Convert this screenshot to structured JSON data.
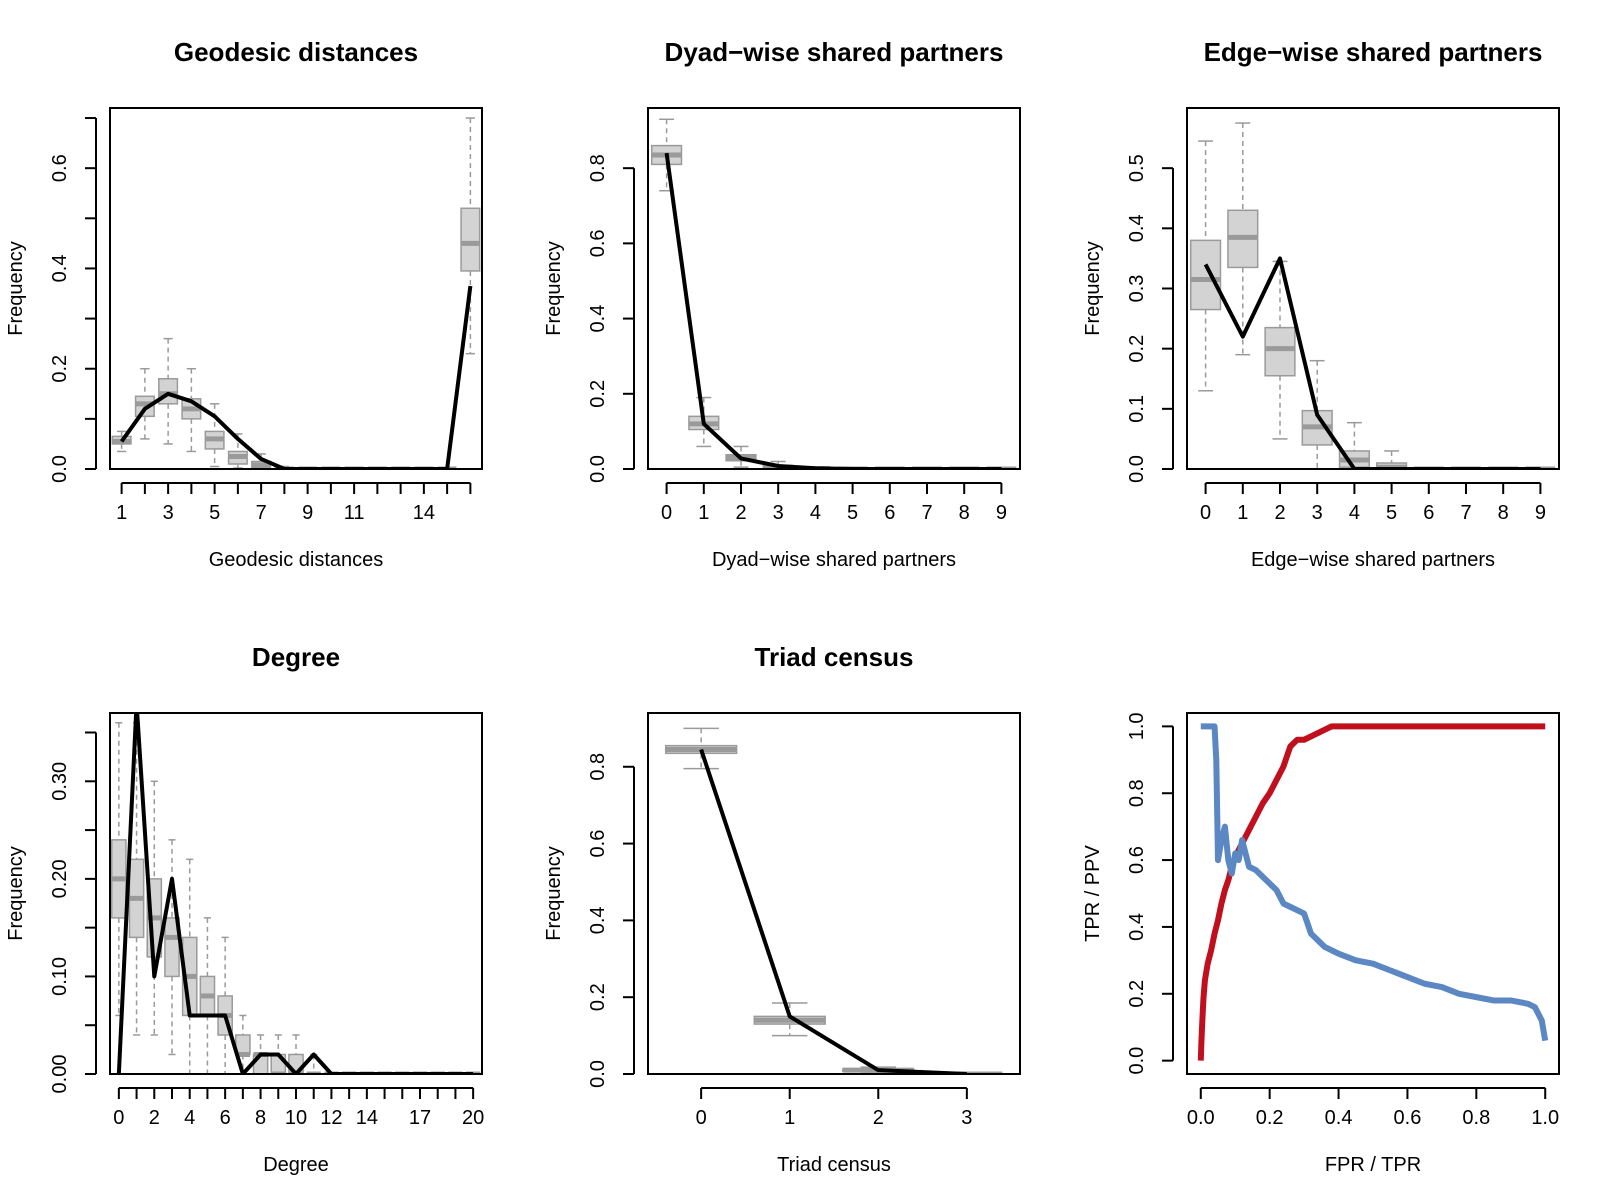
{
  "chart_data": [
    {
      "type": "boxplot",
      "title": "Geodesic distances",
      "xlabel": "Geodesic distances",
      "ylabel": "Frequency",
      "xlim": [
        0.5,
        16.5
      ],
      "ylim": [
        0,
        0.72
      ],
      "xticks": [
        1,
        2,
        3,
        4,
        5,
        6,
        7,
        8,
        9,
        10,
        11,
        12,
        13,
        14,
        15,
        16
      ],
      "xtick_labels": [
        "1",
        "",
        "3",
        "",
        "5",
        "",
        "7",
        "",
        "9",
        "",
        "11",
        "",
        "",
        "14",
        "",
        ""
      ],
      "yticks": [
        0,
        0.1,
        0.2,
        0.3,
        0.4,
        0.5,
        0.6,
        0.7
      ],
      "ytick_labels": [
        "0.0",
        "",
        "0.2",
        "",
        "0.4",
        "",
        "0.6",
        ""
      ],
      "boxes": [
        {
          "x": 1,
          "min": 0.035,
          "q1": 0.05,
          "median": 0.055,
          "q3": 0.065,
          "max": 0.075
        },
        {
          "x": 2,
          "min": 0.06,
          "q1": 0.105,
          "median": 0.13,
          "q3": 0.145,
          "max": 0.2
        },
        {
          "x": 3,
          "min": 0.05,
          "q1": 0.13,
          "median": 0.15,
          "q3": 0.18,
          "max": 0.26
        },
        {
          "x": 4,
          "min": 0.035,
          "q1": 0.1,
          "median": 0.12,
          "q3": 0.14,
          "max": 0.2
        },
        {
          "x": 5,
          "min": 0.005,
          "q1": 0.04,
          "median": 0.06,
          "q3": 0.075,
          "max": 0.13
        },
        {
          "x": 6,
          "min": 0.002,
          "q1": 0.01,
          "median": 0.025,
          "q3": 0.035,
          "max": 0.07
        },
        {
          "x": 7,
          "min": 0.0,
          "q1": 0.002,
          "median": 0.008,
          "q3": 0.015,
          "max": 0.03
        },
        {
          "x": 8,
          "min": 0.0,
          "q1": 0.0,
          "median": 0.0,
          "q3": 0.002,
          "max": 0.005
        },
        {
          "x": 9,
          "min": 0,
          "q1": 0,
          "median": 0,
          "q3": 0,
          "max": 0
        },
        {
          "x": 10,
          "min": 0,
          "q1": 0,
          "median": 0,
          "q3": 0,
          "max": 0
        },
        {
          "x": 11,
          "min": 0,
          "q1": 0,
          "median": 0,
          "q3": 0,
          "max": 0
        },
        {
          "x": 12,
          "min": 0,
          "q1": 0,
          "median": 0,
          "q3": 0,
          "max": 0
        },
        {
          "x": 13,
          "min": 0,
          "q1": 0,
          "median": 0,
          "q3": 0,
          "max": 0
        },
        {
          "x": 14,
          "min": 0,
          "q1": 0,
          "median": 0,
          "q3": 0,
          "max": 0
        },
        {
          "x": 15,
          "min": 0,
          "q1": 0,
          "median": 0,
          "q3": 0,
          "max": 0
        },
        {
          "x": 16,
          "min": 0.23,
          "q1": 0.395,
          "median": 0.45,
          "q3": 0.52,
          "max": 0.7
        }
      ],
      "line": {
        "x": [
          1,
          2,
          3,
          4,
          5,
          6,
          7,
          8,
          9,
          10,
          11,
          12,
          13,
          14,
          15,
          16
        ],
        "y": [
          0.055,
          0.12,
          0.15,
          0.135,
          0.105,
          0.06,
          0.02,
          0.0,
          0.0,
          0.0,
          0.0,
          0.0,
          0.0,
          0.0,
          0.0,
          0.365
        ]
      }
    },
    {
      "type": "boxplot",
      "title": "Dyad−wise shared partners",
      "xlabel": "Dyad−wise shared partners",
      "ylabel": "Frequency",
      "xlim": [
        -0.5,
        9.5
      ],
      "ylim": [
        0,
        0.96
      ],
      "xticks": [
        0,
        1,
        2,
        3,
        4,
        5,
        6,
        7,
        8,
        9
      ],
      "xtick_labels": [
        "0",
        "1",
        "2",
        "3",
        "4",
        "5",
        "6",
        "7",
        "8",
        "9"
      ],
      "yticks": [
        0,
        0.2,
        0.4,
        0.6,
        0.8
      ],
      "ytick_labels": [
        "0.0",
        "0.2",
        "0.4",
        "0.6",
        "0.8"
      ],
      "boxes": [
        {
          "x": 0,
          "min": 0.74,
          "q1": 0.81,
          "median": 0.835,
          "q3": 0.86,
          "max": 0.93
        },
        {
          "x": 1,
          "min": 0.06,
          "q1": 0.105,
          "median": 0.12,
          "q3": 0.14,
          "max": 0.19
        },
        {
          "x": 2,
          "min": 0.005,
          "q1": 0.022,
          "median": 0.03,
          "q3": 0.038,
          "max": 0.06
        },
        {
          "x": 3,
          "min": 0.0,
          "q1": 0.002,
          "median": 0.005,
          "q3": 0.008,
          "max": 0.02
        },
        {
          "x": 4,
          "min": 0,
          "q1": 0,
          "median": 0.001,
          "q3": 0.002,
          "max": 0.005
        },
        {
          "x": 5,
          "min": 0,
          "q1": 0,
          "median": 0,
          "q3": 0,
          "max": 0
        },
        {
          "x": 6,
          "min": 0,
          "q1": 0,
          "median": 0,
          "q3": 0,
          "max": 0
        },
        {
          "x": 7,
          "min": 0,
          "q1": 0,
          "median": 0,
          "q3": 0,
          "max": 0
        },
        {
          "x": 8,
          "min": 0,
          "q1": 0,
          "median": 0,
          "q3": 0,
          "max": 0
        },
        {
          "x": 9,
          "min": 0,
          "q1": 0,
          "median": 0,
          "q3": 0,
          "max": 0
        }
      ],
      "line": {
        "x": [
          0,
          1,
          2,
          3,
          4,
          5,
          6,
          7,
          8,
          9
        ],
        "y": [
          0.84,
          0.12,
          0.028,
          0.008,
          0.002,
          0.0,
          0.0,
          0.0,
          0.0,
          0.0
        ]
      }
    },
    {
      "type": "boxplot",
      "title": "Edge−wise shared partners",
      "xlabel": "Edge−wise shared partners",
      "ylabel": "Frequency",
      "xlim": [
        -0.5,
        9.5
      ],
      "ylim": [
        0,
        0.6
      ],
      "xticks": [
        0,
        1,
        2,
        3,
        4,
        5,
        6,
        7,
        8,
        9
      ],
      "xtick_labels": [
        "0",
        "1",
        "2",
        "3",
        "4",
        "5",
        "6",
        "7",
        "8",
        "9"
      ],
      "yticks": [
        0,
        0.1,
        0.2,
        0.3,
        0.4,
        0.5
      ],
      "ytick_labels": [
        "0.0",
        "0.1",
        "0.2",
        "0.3",
        "0.4",
        "0.5"
      ],
      "boxes": [
        {
          "x": 0,
          "min": 0.13,
          "q1": 0.265,
          "median": 0.315,
          "q3": 0.38,
          "max": 0.545
        },
        {
          "x": 1,
          "min": 0.19,
          "q1": 0.335,
          "median": 0.385,
          "q3": 0.43,
          "max": 0.575
        },
        {
          "x": 2,
          "min": 0.05,
          "q1": 0.155,
          "median": 0.2,
          "q3": 0.235,
          "max": 0.345
        },
        {
          "x": 3,
          "min": 0.0,
          "q1": 0.04,
          "median": 0.07,
          "q3": 0.097,
          "max": 0.18
        },
        {
          "x": 4,
          "min": 0.0,
          "q1": 0.003,
          "median": 0.015,
          "q3": 0.03,
          "max": 0.077
        },
        {
          "x": 5,
          "min": 0.0,
          "q1": 0.0,
          "median": 0.003,
          "q3": 0.01,
          "max": 0.03
        },
        {
          "x": 6,
          "min": 0,
          "q1": 0,
          "median": 0,
          "q3": 0,
          "max": 0
        },
        {
          "x": 7,
          "min": 0,
          "q1": 0,
          "median": 0,
          "q3": 0,
          "max": 0
        },
        {
          "x": 8,
          "min": 0,
          "q1": 0,
          "median": 0,
          "q3": 0,
          "max": 0
        },
        {
          "x": 9,
          "min": 0,
          "q1": 0,
          "median": 0,
          "q3": 0,
          "max": 0
        }
      ],
      "line": {
        "x": [
          0,
          1,
          2,
          3,
          4,
          5,
          6,
          7,
          8,
          9
        ],
        "y": [
          0.34,
          0.22,
          0.35,
          0.09,
          0.0,
          0.0,
          0.0,
          0.0,
          0.0,
          0.0
        ]
      }
    },
    {
      "type": "boxplot",
      "title": "Degree",
      "xlabel": "Degree",
      "ylabel": "Frequency",
      "xlim": [
        -0.5,
        20.5
      ],
      "ylim": [
        0,
        0.37
      ],
      "xticks": [
        0,
        1,
        2,
        3,
        4,
        5,
        6,
        7,
        8,
        9,
        10,
        11,
        12,
        13,
        14,
        15,
        16,
        17,
        18,
        19,
        20
      ],
      "xtick_labels": [
        "0",
        "",
        "2",
        "",
        "4",
        "",
        "6",
        "",
        "8",
        "",
        "10",
        "",
        "12",
        "",
        "14",
        "",
        "",
        "17",
        "",
        "",
        "20"
      ],
      "yticks": [
        0,
        0.05,
        0.1,
        0.15,
        0.2,
        0.25,
        0.3,
        0.35
      ],
      "ytick_labels": [
        "0.00",
        "",
        "0.10",
        "",
        "0.20",
        "",
        "0.30",
        ""
      ],
      "boxes": [
        {
          "x": 0,
          "min": 0.06,
          "q1": 0.16,
          "median": 0.2,
          "q3": 0.24,
          "max": 0.36
        },
        {
          "x": 1,
          "min": 0.04,
          "q1": 0.14,
          "median": 0.18,
          "q3": 0.22,
          "max": 0.36
        },
        {
          "x": 2,
          "min": 0.04,
          "q1": 0.12,
          "median": 0.16,
          "q3": 0.2,
          "max": 0.3
        },
        {
          "x": 3,
          "min": 0.02,
          "q1": 0.1,
          "median": 0.14,
          "q3": 0.16,
          "max": 0.24
        },
        {
          "x": 4,
          "min": 0.0,
          "q1": 0.06,
          "median": 0.1,
          "q3": 0.14,
          "max": 0.22
        },
        {
          "x": 5,
          "min": 0.0,
          "q1": 0.06,
          "median": 0.08,
          "q3": 0.1,
          "max": 0.16
        },
        {
          "x": 6,
          "min": 0.0,
          "q1": 0.04,
          "median": 0.06,
          "q3": 0.08,
          "max": 0.14
        },
        {
          "x": 7,
          "min": 0.0,
          "q1": 0.02,
          "median": 0.02,
          "q3": 0.04,
          "max": 0.06
        },
        {
          "x": 8,
          "min": 0.0,
          "q1": 0.0,
          "median": 0.02,
          "q3": 0.02,
          "max": 0.04
        },
        {
          "x": 9,
          "min": 0.0,
          "q1": 0.0,
          "median": 0.0,
          "q3": 0.02,
          "max": 0.04
        },
        {
          "x": 10,
          "min": 0.0,
          "q1": 0.0,
          "median": 0.0,
          "q3": 0.02,
          "max": 0.04
        },
        {
          "x": 11,
          "min": 0.0,
          "q1": 0.0,
          "median": 0.0,
          "q3": 0.0,
          "max": 0.02
        },
        {
          "x": 12,
          "min": 0,
          "q1": 0,
          "median": 0,
          "q3": 0,
          "max": 0
        },
        {
          "x": 13,
          "min": 0,
          "q1": 0,
          "median": 0,
          "q3": 0,
          "max": 0
        },
        {
          "x": 14,
          "min": 0,
          "q1": 0,
          "median": 0,
          "q3": 0,
          "max": 0
        },
        {
          "x": 15,
          "min": 0,
          "q1": 0,
          "median": 0,
          "q3": 0,
          "max": 0
        },
        {
          "x": 16,
          "min": 0,
          "q1": 0,
          "median": 0,
          "q3": 0,
          "max": 0
        },
        {
          "x": 17,
          "min": 0,
          "q1": 0,
          "median": 0,
          "q3": 0,
          "max": 0
        },
        {
          "x": 18,
          "min": 0,
          "q1": 0,
          "median": 0,
          "q3": 0,
          "max": 0
        },
        {
          "x": 19,
          "min": 0,
          "q1": 0,
          "median": 0,
          "q3": 0,
          "max": 0
        },
        {
          "x": 20,
          "min": 0,
          "q1": 0,
          "median": 0,
          "q3": 0,
          "max": 0
        }
      ],
      "line": {
        "x": [
          0,
          1,
          2,
          3,
          4,
          5,
          6,
          7,
          8,
          9,
          10,
          11,
          12,
          13,
          14,
          15,
          16,
          17,
          18,
          19,
          20
        ],
        "y": [
          0.0,
          0.38,
          0.1,
          0.2,
          0.06,
          0.06,
          0.06,
          0.0,
          0.02,
          0.02,
          0.0,
          0.02,
          0.0,
          0.0,
          0.0,
          0.0,
          0.0,
          0.0,
          0.0,
          0.0,
          0.0
        ]
      }
    },
    {
      "type": "boxplot",
      "title": "Triad census",
      "xlabel": "Triad census",
      "ylabel": "Frequency",
      "xlim": [
        -0.6,
        3.6
      ],
      "ylim": [
        0,
        0.94
      ],
      "xticks": [
        0,
        1,
        2,
        3
      ],
      "xtick_labels": [
        "0",
        "1",
        "2",
        "3"
      ],
      "yticks": [
        0,
        0.2,
        0.4,
        0.6,
        0.8
      ],
      "ytick_labels": [
        "0.0",
        "0.2",
        "0.4",
        "0.6",
        "0.8"
      ],
      "boxes": [
        {
          "x": 0,
          "min": 0.795,
          "q1": 0.835,
          "median": 0.845,
          "q3": 0.855,
          "max": 0.9
        },
        {
          "x": 1,
          "min": 0.1,
          "q1": 0.13,
          "median": 0.14,
          "q3": 0.15,
          "max": 0.185
        },
        {
          "x": 2,
          "min": 0.005,
          "q1": 0.007,
          "median": 0.01,
          "q3": 0.013,
          "max": 0.018
        },
        {
          "x": 3,
          "min": 0.0,
          "q1": 0.0,
          "median": 0.0,
          "q3": 0.001,
          "max": 0.002
        }
      ],
      "line": {
        "x": [
          0,
          1,
          2,
          3
        ],
        "y": [
          0.845,
          0.15,
          0.01,
          0.0
        ]
      }
    },
    {
      "type": "line",
      "title": "",
      "xlabel": "FPR / TPR",
      "ylabel": "TPR / PPV",
      "xlim": [
        -0.04,
        1.04
      ],
      "ylim": [
        -0.04,
        1.04
      ],
      "xticks": [
        0,
        0.2,
        0.4,
        0.6,
        0.8,
        1.0
      ],
      "xtick_labels": [
        "0.0",
        "0.2",
        "0.4",
        "0.6",
        "0.8",
        "1.0"
      ],
      "yticks": [
        0,
        0.2,
        0.4,
        0.6,
        0.8,
        1.0
      ],
      "ytick_labels": [
        "0.0",
        "0.2",
        "0.4",
        "0.6",
        "0.8",
        "1.0"
      ],
      "series": [
        {
          "color": "#C0101E",
          "x": [
            0.0,
            0.002,
            0.005,
            0.008,
            0.012,
            0.02,
            0.03,
            0.04,
            0.05,
            0.06,
            0.07,
            0.08,
            0.09,
            0.1,
            0.12,
            0.14,
            0.16,
            0.18,
            0.2,
            0.22,
            0.24,
            0.25,
            0.26,
            0.28,
            0.3,
            0.32,
            0.34,
            0.36,
            0.38,
            0.4,
            0.5,
            0.6,
            0.7,
            0.8,
            0.9,
            1.0
          ],
          "y": [
            0.0,
            0.06,
            0.13,
            0.19,
            0.24,
            0.29,
            0.33,
            0.38,
            0.42,
            0.47,
            0.51,
            0.54,
            0.58,
            0.61,
            0.65,
            0.69,
            0.73,
            0.77,
            0.8,
            0.84,
            0.88,
            0.91,
            0.94,
            0.96,
            0.96,
            0.97,
            0.98,
            0.99,
            1.0,
            1.0,
            1.0,
            1.0,
            1.0,
            1.0,
            1.0,
            1.0
          ]
        },
        {
          "color": "#5B87C3",
          "x": [
            0.0,
            0.04,
            0.045,
            0.05,
            0.06,
            0.07,
            0.08,
            0.09,
            0.1,
            0.11,
            0.12,
            0.14,
            0.16,
            0.18,
            0.2,
            0.22,
            0.24,
            0.26,
            0.28,
            0.3,
            0.32,
            0.34,
            0.36,
            0.4,
            0.45,
            0.5,
            0.55,
            0.6,
            0.65,
            0.7,
            0.75,
            0.8,
            0.85,
            0.9,
            0.95,
            0.97,
            0.99,
            1.0
          ],
          "y": [
            1.0,
            1.0,
            0.9,
            0.6,
            0.66,
            0.7,
            0.6,
            0.56,
            0.62,
            0.6,
            0.66,
            0.58,
            0.57,
            0.55,
            0.53,
            0.51,
            0.47,
            0.46,
            0.45,
            0.44,
            0.38,
            0.36,
            0.34,
            0.32,
            0.3,
            0.29,
            0.27,
            0.25,
            0.23,
            0.22,
            0.2,
            0.19,
            0.18,
            0.18,
            0.17,
            0.16,
            0.12,
            0.06
          ]
        }
      ]
    }
  ]
}
